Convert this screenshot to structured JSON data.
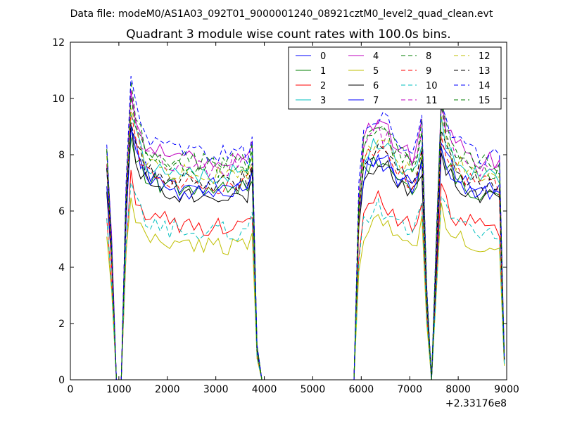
{
  "figure": {
    "suptitle": "Data file: modeM0/AS1A03_092T01_9000001240_08921cztM0_level2_quad_clean.evt"
  },
  "chart_data": {
    "type": "line",
    "title": "Quadrant 3 module wise count rates with 100.0s bins.",
    "xlabel": "",
    "ylabel": "",
    "x_offset_label": "+2.33176e8",
    "xlim": [
      0,
      9000
    ],
    "ylim": [
      0,
      12
    ],
    "xticks": [
      0,
      1000,
      2000,
      3000,
      4000,
      5000,
      6000,
      7000,
      8000,
      9000
    ],
    "yticks": [
      0,
      2,
      4,
      6,
      8,
      10,
      12
    ],
    "grid": false,
    "legend_position": "top-right",
    "legend_columns": 4,
    "series_levels": [
      7.2,
      7.0,
      5.7,
      7.6,
      8.2,
      5.0,
      6.9,
      7.0,
      8.1,
      7.3,
      5.5,
      7.9,
      7.6,
      7.3,
      8.4,
      7.9
    ],
    "x": [
      750,
      850,
      950,
      1050,
      1150,
      1250,
      1350,
      1450,
      1550,
      1650,
      1750,
      1850,
      1950,
      2050,
      2150,
      2250,
      2350,
      2450,
      2550,
      2650,
      2750,
      2850,
      2950,
      3050,
      3150,
      3250,
      3350,
      3450,
      3550,
      3650,
      3750,
      3850,
      3950,
      4050,
      4150,
      4250,
      4350,
      4450,
      4550,
      4650,
      4750,
      4850,
      4950,
      5050,
      5150,
      5250,
      5350,
      5450,
      5550,
      5650,
      5750,
      5850,
      5950,
      6050,
      6150,
      6250,
      6350,
      6450,
      6550,
      6650,
      6750,
      6850,
      6950,
      7050,
      7150,
      7250,
      7350,
      7450,
      7550,
      7650,
      7750,
      7850,
      7950,
      8050,
      8150,
      8250,
      8350,
      8450,
      8550,
      8650,
      8750,
      8850,
      8950
    ],
    "profile": [
      1.0,
      0.6,
      0.0,
      0.0,
      0.85,
      1.27,
      1.15,
      1.08,
      1.03,
      1.0,
      1.0,
      0.98,
      0.99,
      0.97,
      0.98,
      0.96,
      0.97,
      0.95,
      0.96,
      0.95,
      0.96,
      0.95,
      0.96,
      0.95,
      0.96,
      0.95,
      0.97,
      0.96,
      0.98,
      0.95,
      1.05,
      0.15,
      0.0,
      0.0,
      0.0,
      0.0,
      0.0,
      0.0,
      0.0,
      0.0,
      0.0,
      0.0,
      0.0,
      0.0,
      0.0,
      0.0,
      0.0,
      0.0,
      0.0,
      0.0,
      0.0,
      0.0,
      0.8,
      1.05,
      1.08,
      1.1,
      1.12,
      1.1,
      1.08,
      1.05,
      1.02,
      1.0,
      0.98,
      0.96,
      1.0,
      1.1,
      0.4,
      0.0,
      0.6,
      1.2,
      1.1,
      1.05,
      1.02,
      1.0,
      0.98,
      0.97,
      0.96,
      0.95,
      0.95,
      0.95,
      0.95,
      0.94,
      0.1
    ],
    "series": [
      {
        "name": "0",
        "color": "#0000ff",
        "dashed": false
      },
      {
        "name": "1",
        "color": "#007f00",
        "dashed": false
      },
      {
        "name": "2",
        "color": "#ff0000",
        "dashed": false
      },
      {
        "name": "3",
        "color": "#00bfbf",
        "dashed": false
      },
      {
        "name": "4",
        "color": "#bf00bf",
        "dashed": false
      },
      {
        "name": "5",
        "color": "#bfbf00",
        "dashed": false
      },
      {
        "name": "6",
        "color": "#000000",
        "dashed": false
      },
      {
        "name": "7",
        "color": "#0000ff",
        "dashed": false
      },
      {
        "name": "8",
        "color": "#007f00",
        "dashed": true
      },
      {
        "name": "9",
        "color": "#ff0000",
        "dashed": true
      },
      {
        "name": "10",
        "color": "#00bfbf",
        "dashed": true
      },
      {
        "name": "11",
        "color": "#bf00bf",
        "dashed": true
      },
      {
        "name": "12",
        "color": "#bfbf00",
        "dashed": true
      },
      {
        "name": "13",
        "color": "#000000",
        "dashed": true
      },
      {
        "name": "14",
        "color": "#0000ff",
        "dashed": true
      },
      {
        "name": "15",
        "color": "#007f00",
        "dashed": true
      }
    ]
  }
}
